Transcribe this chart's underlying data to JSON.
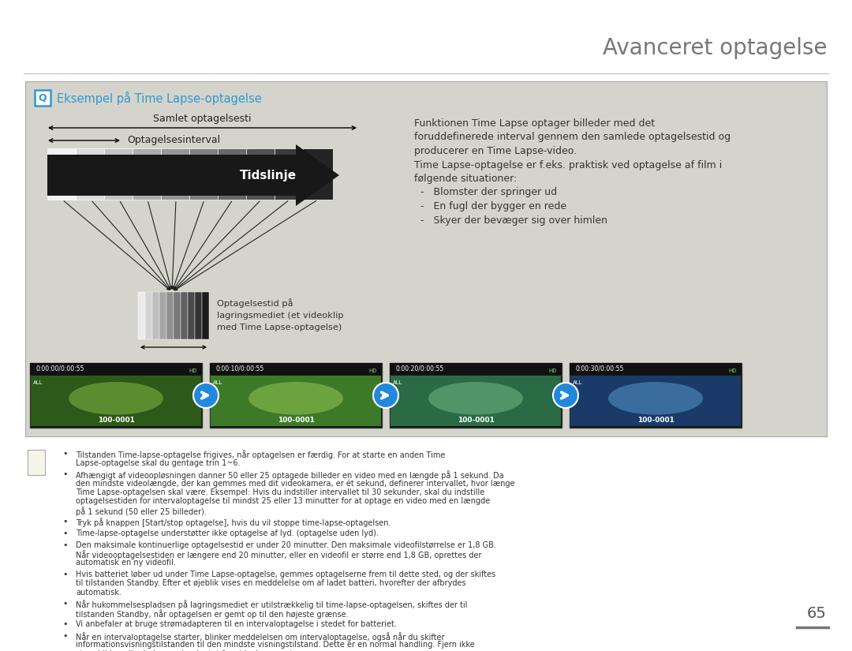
{
  "page_bg": "#ffffff",
  "content_bg": "#d4d4cc",
  "header_line_color": "#bbbbbb",
  "title": "Avanceret optagelse",
  "title_color": "#777777",
  "title_fontsize": 20,
  "section_title": "Eksempel på Time Lapse-optagelse",
  "section_title_color": "#3399cc",
  "label_samlet": "Samlet optagelsesti",
  "label_optagelses": "Optagelsesinterval",
  "label_tidslinje": "Tidslinje",
  "label_optagelsestid": "Optagelsestid på\nlagringsmediet (et videoklip\nmed Time Lapse-optagelse)",
  "right_text": "Funktionen Time Lapse optager billeder med det\nforuddefinerede interval gennem den samlede optagelsestid og\nproducerer en Time Lapse-video.\nTime Lapse-optagelse er f.eks. praktisk ved optagelse af film i\nfølgende situationer:\n  -   Blomster der springer ud\n  -   En fugl der bygger en rede\n  -   Skyer der bevæger sig over himlen",
  "video_timestamps": [
    "0:00:00/0:00:55",
    "0:00:10/0:00:55",
    "0:00:20/0:00:55",
    "0:00:30/0:00:55"
  ],
  "video_label": "100-0001",
  "bullet_notes": [
    "Tilstanden Time-lapse-optagelse frigives, når optagelsen er færdig. For at starte en anden Time Lapse-optagelse skal du gentage trin 1~6.",
    "Afhængigt af videoopløsningen danner 50 eller 25 optagede billeder en video med en længde på 1 sekund. Da den mindste videolængde, der kan gemmes med dit videokamera, er ét sekund, definerer intervallet, hvor længe Time Lapse-optagelsen skal være. Eksempel: Hvis du indstiller intervallet til 30 sekunder, skal du indstille optagelsestiden for intervaloptagelse til mindst 25 eller 13 minutter for at optage en video med en længde på 1 sekund (50 eller 25 billeder).",
    "Tryk på knappen [Start/stop optagelse], hvis du vil stoppe time-lapse-optagelsen.",
    "Time-lapse-optagelse understøtter ikke optagelse af lyd. (optagelse uden lyd).",
    "Den maksimale kontinuerlige optagelsestid er under 20 minutter. Den maksimale videofilstørrelse er 1,8 GB. Når videooptagelsestiden er længere end 20 minutter, eller en videofil er større end 1,8 GB, oprettes der automatisk en ny videofil.",
    "Hvis batteriet løber ud under Time Lapse-optagelse, gemmes optagelserne frem til dette sted, og der skiftes til tilstanden Standby. Efter et øjeblik vises en meddelelse om af ladet batteri, hvorefter der afbrydes automatisk.",
    "Når hukommelsespladsen på lagringsmediet er utilstrækkelig til time-lapse-optagelsen, skiftes der til tilstanden Standby, når optagelsen er gemt op til den højeste grænse.",
    "Vi anbefaler at bruge strømadapteren til en intervaloptagelse i stedet for batteriet.",
    "Når en intervaloptagelse starter, blinker meddelelsen om intervaloptagelse, også når du skifter informationsvisningstilstanden til den mindste visningstilstand. Dette er en normal handling. Fjern ikke strømkilden eller hukommelseskortet fra videokameraet."
  ],
  "page_number": "65"
}
